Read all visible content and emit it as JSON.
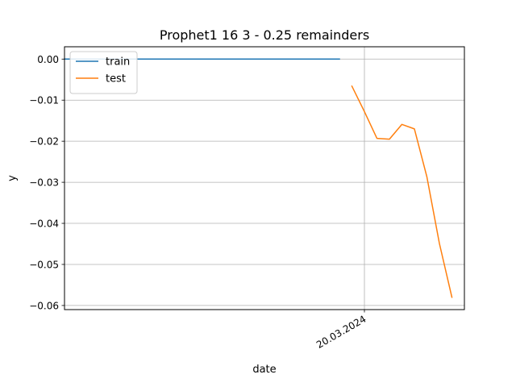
{
  "chart_data": {
    "type": "line",
    "title": "Prophet1 16 3 - 0.25 remainders",
    "xlabel": "date",
    "ylabel": "y",
    "xlim": [
      "2024-02-25",
      "2024-03-28"
    ],
    "ylim": [
      -0.061,
      0.003
    ],
    "yticks": [
      0.0,
      -0.01,
      -0.02,
      -0.03,
      -0.04,
      -0.05,
      -0.06
    ],
    "ytick_labels": [
      "0.00",
      "−0.01",
      "−0.02",
      "−0.03",
      "−0.04",
      "−0.05",
      "−0.06"
    ],
    "xticks": [
      "2024-03-20"
    ],
    "xtick_labels": [
      "20.03.2024"
    ],
    "grid": true,
    "legend": {
      "position": "upper-left"
    },
    "series": [
      {
        "name": "train",
        "color": "#1f77b4",
        "x": [
          "2024-02-25",
          "2024-03-18"
        ],
        "y": [
          0.0,
          0.0
        ]
      },
      {
        "name": "test",
        "color": "#ff7f0e",
        "x": [
          "2024-03-19",
          "2024-03-20",
          "2024-03-21",
          "2024-03-22",
          "2024-03-23",
          "2024-03-24",
          "2024-03-25",
          "2024-03-26",
          "2024-03-27"
        ],
        "y": [
          -0.0066,
          -0.0128,
          -0.0193,
          -0.0195,
          -0.0159,
          -0.017,
          -0.0287,
          -0.0449,
          -0.058
        ]
      }
    ]
  }
}
